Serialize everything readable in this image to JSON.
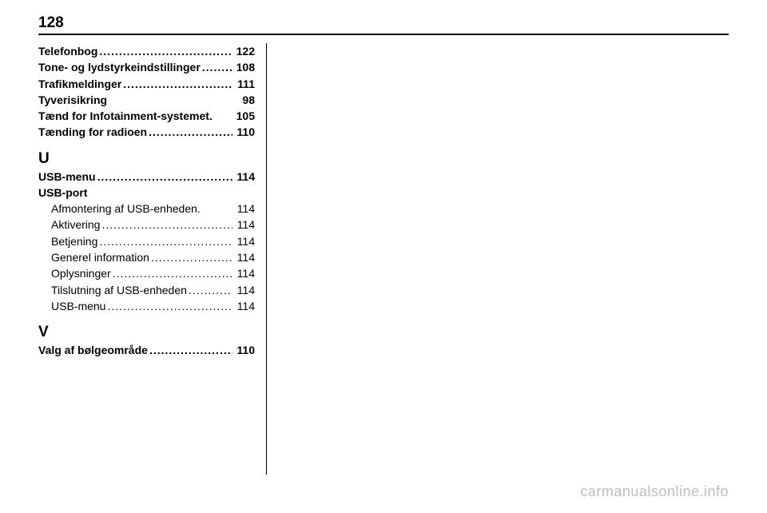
{
  "pageNumber": "128",
  "watermark": "carmanualsonline.info",
  "sections": [
    {
      "type": "entries",
      "items": [
        {
          "label": "Telefonbog",
          "page": "122",
          "sub": false
        },
        {
          "label": "Tone- og lydstyrkeindstillinger",
          "page": "108",
          "sub": false
        },
        {
          "label": "Trafikmeldinger",
          "page": "111",
          "sub": false
        },
        {
          "label": "Tyverisikring",
          "page": "98",
          "sub": false,
          "gap": true
        },
        {
          "label": "Tænd for Infotainment-systemet",
          "page": "105",
          "sub": false,
          "tight": true
        },
        {
          "label": "Tænding for radioen",
          "page": "110",
          "sub": false
        }
      ]
    },
    {
      "type": "letter",
      "text": "U"
    },
    {
      "type": "entries",
      "items": [
        {
          "label": "USB-menu",
          "page": "114",
          "sub": false
        }
      ]
    },
    {
      "type": "group",
      "head": "USB-port",
      "items": [
        {
          "label": "Afmontering af USB-enheden",
          "page": "114",
          "sub": true,
          "tight": true
        },
        {
          "label": "Aktivering",
          "page": "114",
          "sub": true
        },
        {
          "label": "Betjening",
          "page": "114",
          "sub": true
        },
        {
          "label": "Generel information",
          "page": "114",
          "sub": true
        },
        {
          "label": "Oplysninger",
          "page": "114",
          "sub": true
        },
        {
          "label": "Tilslutning af USB-enheden",
          "page": "114",
          "sub": true
        },
        {
          "label": "USB-menu",
          "page": "114",
          "sub": true
        }
      ]
    },
    {
      "type": "letter",
      "text": "V"
    },
    {
      "type": "entries",
      "items": [
        {
          "label": "Valg af bølgeområde",
          "page": "110",
          "sub": false
        }
      ]
    }
  ]
}
